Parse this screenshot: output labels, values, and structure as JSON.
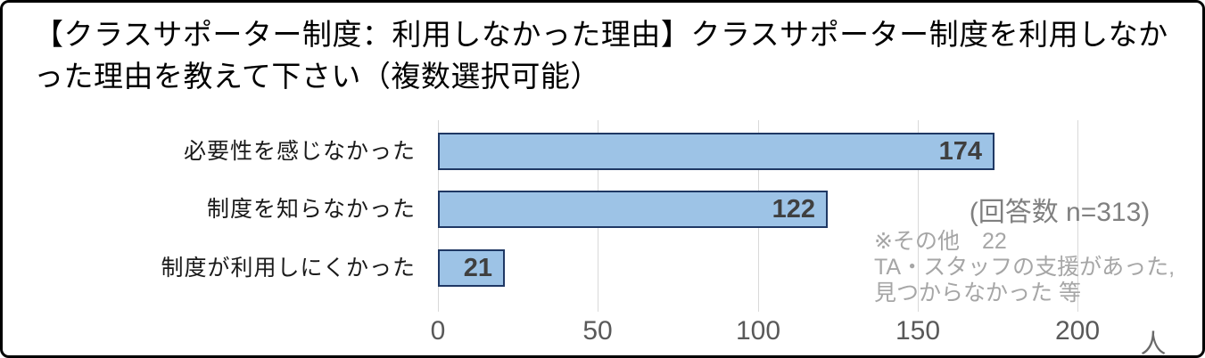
{
  "title": "【クラスサポーター制度：利用しなかった理由】クラスサポーター制度を利用しなかった理由を教えて下さい（複数選択可能）",
  "chart_data": {
    "type": "bar",
    "orientation": "horizontal",
    "categories": [
      "必要性を感じなかった",
      "制度を知らなかった",
      "制度が利用しにくかった"
    ],
    "values": [
      174,
      122,
      21
    ],
    "x_ticks": [
      0,
      50,
      100,
      150,
      200
    ],
    "xlim": [
      0,
      200
    ],
    "x_unit_label": "人",
    "grid": "vertical-light-gray",
    "legend": "none",
    "bar_fill_color": "#9dc3e6",
    "bar_border_color": "#1f3864",
    "value_label_color": "#3f3f3f",
    "value_labels_inside_bar_end": true
  },
  "annotations": {
    "response_count": "(回答数 n=313)",
    "other_note_lines": [
      "※その他　22",
      "TA・スタッフの支援があった,",
      "見つからなかった 等"
    ]
  }
}
